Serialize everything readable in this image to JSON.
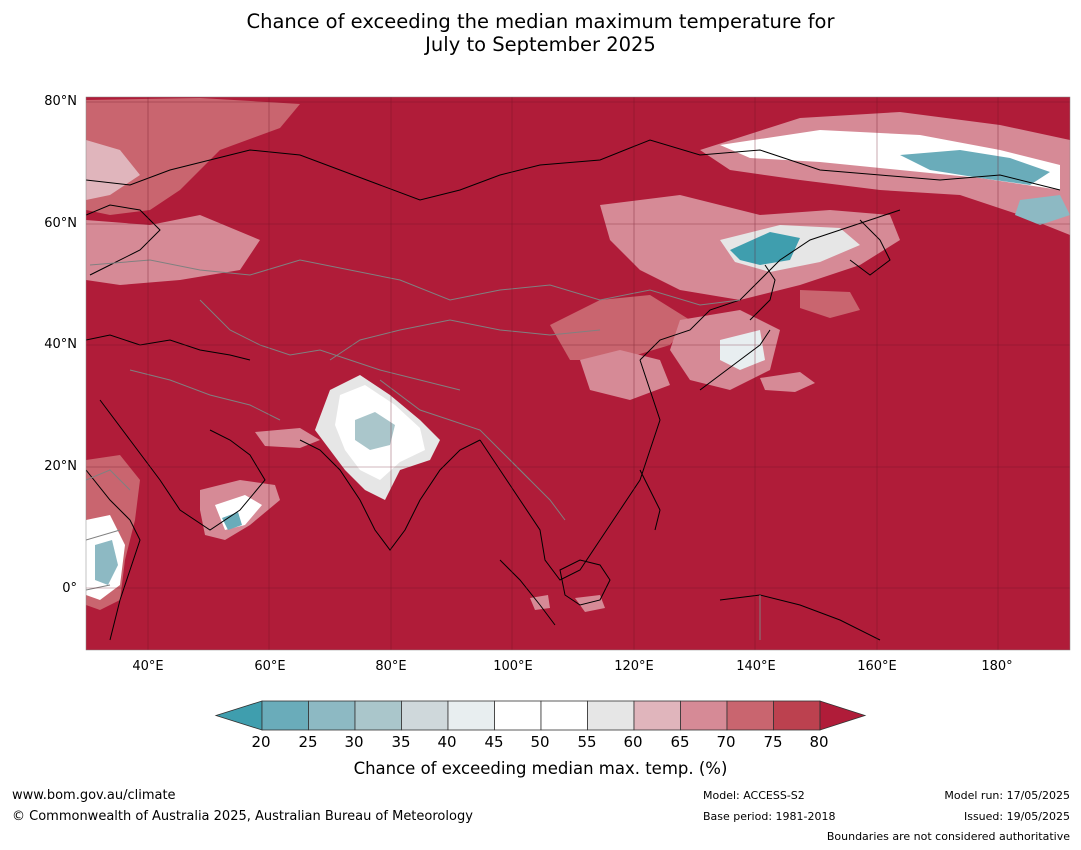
{
  "title": {
    "line1": "Chance of exceeding the median maximum temperature for",
    "line2": "July to September 2025"
  },
  "map": {
    "latitude_labels": [
      "80°N",
      "60°N",
      "40°N",
      "20°N",
      "0°"
    ],
    "longitude_labels": [
      "40°E",
      "60°E",
      "80°E",
      "100°E",
      "120°E",
      "140°E",
      "160°E",
      "180°"
    ],
    "extent": {
      "lon": [
        30,
        191
      ],
      "lat": [
        -10,
        80
      ]
    },
    "background_color": "#b01c39",
    "gridlines": true
  },
  "colorbar": {
    "ticks": [
      "20",
      "25",
      "30",
      "35",
      "40",
      "45",
      "50",
      "55",
      "60",
      "65",
      "70",
      "75",
      "80"
    ],
    "colors": [
      "#3f9eae",
      "#6aacba",
      "#8db9c3",
      "#aac6cb",
      "#cfd8db",
      "#e8eef0",
      "#ffffff",
      "#ffffff",
      "#e6e6e6",
      "#e0b5bc",
      "#d68a96",
      "#c9656f",
      "#bc414f",
      "#b01c39"
    ],
    "label": "Chance of exceeding median max. temp. (%)"
  },
  "footer": {
    "website": "www.bom.gov.au/climate",
    "copyright": "© Commonwealth of Australia 2025, Australian Bureau of Meteorology",
    "model": "Model: ACCESS-S2",
    "base_period": "Base period: 1981-2018",
    "model_run": "Model run: 17/05/2025",
    "issued": "Issued: 19/05/2025",
    "disclaimer": "Boundaries are not considered authoritative"
  }
}
